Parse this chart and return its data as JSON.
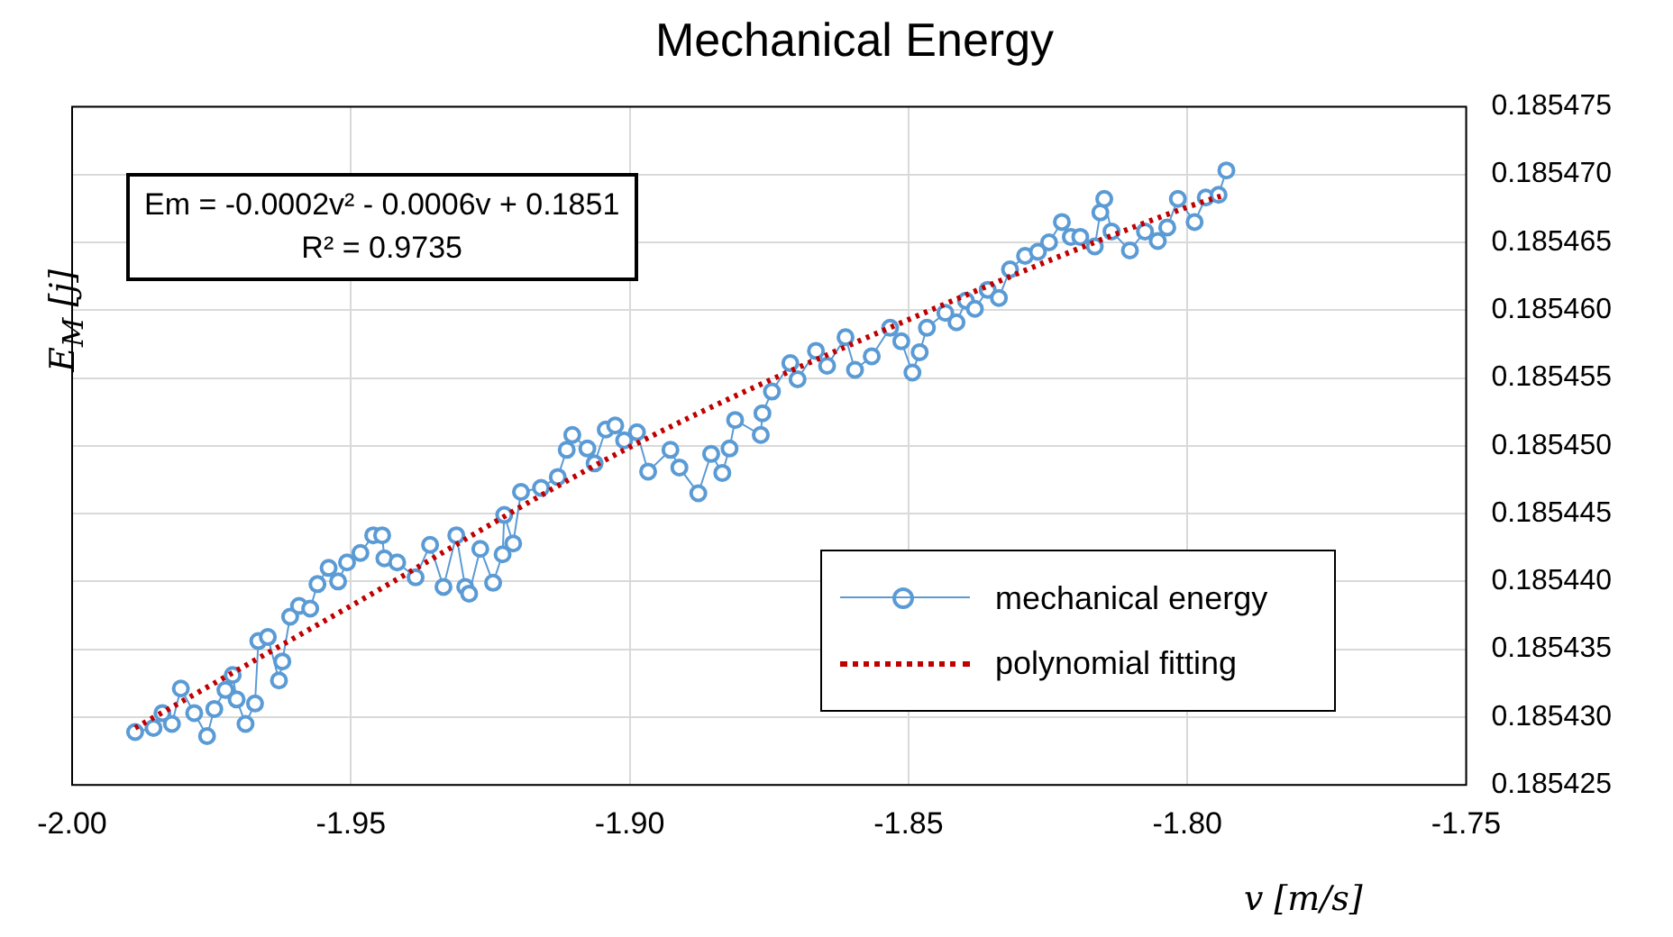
{
  "chart_data": {
    "type": "line",
    "title": "Mechanical Energy",
    "xlabel": "v [m/s]",
    "ylabel": "E$_{M}$ [j]",
    "annotations": [
      "Em = -0.0002v² - 0.0006v + 0.1851",
      "R² = 0.9735"
    ],
    "xlim": [
      -2,
      -1.75
    ],
    "xticks": [
      {
        "value": -2,
        "label": "-2.00"
      },
      {
        "value": -1.95,
        "label": "-1.95"
      },
      {
        "value": -1.9,
        "label": "-1.90"
      },
      {
        "value": -1.85,
        "label": "-1.85"
      },
      {
        "value": -1.8,
        "label": "-1.80"
      },
      {
        "value": -1.75,
        "label": "-1.75"
      }
    ],
    "ylim": [
      0.185425,
      0.185475
    ],
    "yticks": [
      0.185425,
      {
        "value": 0.18543,
        "label": "0.185430"
      },
      0.185435,
      {
        "value": 0.18544,
        "label": "0.185440"
      },
      0.185445,
      {
        "value": 0.18545,
        "label": "0.185450"
      },
      0.185455,
      {
        "value": 0.18546,
        "label": "0.185460"
      },
      0.185465,
      {
        "value": 0.18547,
        "label": "0.185470"
      },
      0.185475
    ],
    "grid": true,
    "legend": "bottom right",
    "series": [
      {
        "name": "mechanical energy",
        "type": "line",
        "color": "#5b9bd5",
        "marker": "circle",
        "line_style": "solid",
        "x": [
          -1.9887,
          -1.9854,
          -1.9838,
          -1.9821,
          -1.9805,
          -1.9781,
          -1.9758,
          -1.9745,
          -1.9725,
          -1.9712,
          -1.9705,
          -1.9689,
          -1.9672,
          -1.9666,
          -1.9649,
          -1.9629,
          -1.9623,
          -1.9609,
          -1.9593,
          -1.9573,
          -1.956,
          -1.954,
          -1.9523,
          -1.9507,
          -1.9483,
          -1.946,
          -1.9444,
          -1.944,
          -1.9417,
          -1.9384,
          -1.9358,
          -1.9334,
          -1.9311,
          -1.9295,
          -1.9288,
          -1.9268,
          -1.9245,
          -1.9228,
          -1.9225,
          -1.9209,
          -1.9195,
          -1.9159,
          -1.9129,
          -1.9113,
          -1.9103,
          -1.9076,
          -1.9063,
          -1.9043,
          -1.9026,
          -1.901,
          -1.8987,
          -1.8967,
          -1.8927,
          -1.8911,
          -1.8877,
          -1.8854,
          -1.8834,
          -1.8821,
          -1.8811,
          -1.8765,
          -1.8762,
          -1.8745,
          -1.8712,
          -1.8699,
          -1.8666,
          -1.8646,
          -1.8613,
          -1.8596,
          -1.8566,
          -1.8533,
          -1.8513,
          -1.8493,
          -1.848,
          -1.8467,
          -1.8434,
          -1.8414,
          -1.8397,
          -1.8381,
          -1.8358,
          -1.8338,
          -1.8318,
          -1.8291,
          -1.8268,
          -1.8248,
          -1.8225,
          -1.8209,
          -1.8192,
          -1.8166,
          -1.8156,
          -1.8149,
          -1.8136,
          -1.8103,
          -1.8076,
          -1.8053,
          -1.8036,
          -1.8017,
          -1.7987,
          -1.7967,
          -1.7944,
          -1.793
        ],
        "values": [
          0.1854289,
          0.1854292,
          0.1854303,
          0.1854295,
          0.1854321,
          0.1854303,
          0.1854286,
          0.1854306,
          0.185432,
          0.1854331,
          0.1854313,
          0.1854295,
          0.185431,
          0.1854356,
          0.1854359,
          0.1854327,
          0.1854341,
          0.1854374,
          0.1854382,
          0.185438,
          0.1854398,
          0.185441,
          0.18544,
          0.1854414,
          0.1854421,
          0.1854434,
          0.1854434,
          0.1854417,
          0.1854414,
          0.1854403,
          0.1854427,
          0.1854396,
          0.1854434,
          0.1854396,
          0.1854391,
          0.1854424,
          0.1854399,
          0.185442,
          0.1854449,
          0.1854428,
          0.1854466,
          0.1854469,
          0.1854477,
          0.1854497,
          0.1854508,
          0.1854498,
          0.1854487,
          0.1854512,
          0.1854515,
          0.1854504,
          0.185451,
          0.1854481,
          0.1854497,
          0.1854484,
          0.1854465,
          0.1854494,
          0.185448,
          0.1854498,
          0.1854519,
          0.1854508,
          0.1854524,
          0.185454,
          0.1854561,
          0.1854549,
          0.185457,
          0.1854559,
          0.185458,
          0.1854556,
          0.1854566,
          0.1854587,
          0.1854577,
          0.1854554,
          0.1854569,
          0.1854587,
          0.1854598,
          0.1854591,
          0.1854607,
          0.1854601,
          0.1854615,
          0.1854609,
          0.185463,
          0.185464,
          0.1854643,
          0.185465,
          0.1854665,
          0.1854654,
          0.1854654,
          0.1854647,
          0.1854672,
          0.1854682,
          0.1854658,
          0.1854644,
          0.1854658,
          0.1854651,
          0.1854661,
          0.1854682,
          0.1854665,
          0.1854683,
          0.1854685,
          0.1854703
        ]
      },
      {
        "name": "polynomial fitting",
        "type": "line",
        "color": "#c00000",
        "marker": "none",
        "line_style": "dotted",
        "x": [
          -1.9887,
          -1.95,
          -1.9,
          -1.85,
          -1.8,
          -1.794
        ],
        "values": [
          0.1854292,
          0.1854382,
          0.1854499,
          0.1854593,
          0.1854676,
          0.1854684
        ]
      }
    ]
  }
}
